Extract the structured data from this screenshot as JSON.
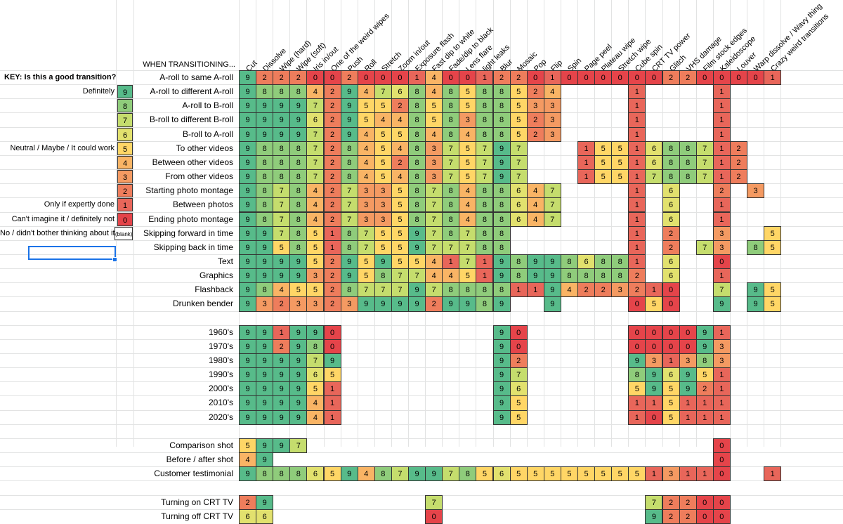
{
  "key": {
    "title": "KEY: Is this a good transition?",
    "rows": [
      {
        "label": "Definitely",
        "value": "9"
      },
      {
        "label": "",
        "value": "8"
      },
      {
        "label": "",
        "value": "7"
      },
      {
        "label": "",
        "value": "6"
      },
      {
        "label": "Neutral / Maybe / It could work",
        "value": "5"
      },
      {
        "label": "",
        "value": "4"
      },
      {
        "label": "",
        "value": "3"
      },
      {
        "label": "",
        "value": "2"
      },
      {
        "label": "Only if expertly done",
        "value": "1"
      },
      {
        "label": "Can't imagine it / definitely not",
        "value": "0"
      },
      {
        "label": "No / didn't bother thinking about it",
        "value": "(blank)"
      }
    ]
  },
  "corner_label": "WHEN TRANSITIONING...",
  "columns": [
    "Cut",
    "Dissolve",
    "Wipe (hard)",
    "Wipe (soft)",
    "Iris in/out",
    "One of the weird wipes",
    "Push",
    "Roll",
    "Stretch",
    "Zoom in/out",
    "Exposure flash",
    "Fast dip to white",
    "Fade/dip to black",
    "Lens flare",
    "light leaks",
    "Blur",
    "Mosaic",
    "Pop",
    "Flip",
    "Spin",
    "Page peel",
    "Plateau wipe",
    "Stretch wipe",
    "Cube spin",
    "CRT TV power",
    "Glitch",
    "VHS damage",
    "Film stock edges",
    "Kaleidoscope",
    "Louver",
    "Warp dissolve / Wavy thing",
    "Crazy weird transitions"
  ],
  "rows": [
    {
      "label": "A-roll to same A-roll",
      "cells": [
        "9",
        "2",
        "2",
        "2",
        "0",
        "0",
        "2",
        "0",
        "0",
        "0",
        "1",
        "4",
        "0",
        "0",
        "1",
        "2",
        "2",
        "0",
        "1",
        "0",
        "0",
        "0",
        "0",
        "0",
        "0",
        "2",
        "2",
        "0",
        "0",
        "0",
        "0",
        "1"
      ]
    },
    {
      "label": "A-roll to different A-roll",
      "cells": [
        "9",
        "8",
        "8",
        "8",
        "4",
        "2",
        "9",
        "4",
        "7",
        "6",
        "8",
        "4",
        "8",
        "5",
        "8",
        "8",
        "5",
        "2",
        "4",
        "",
        "",
        "",
        "",
        "1",
        "",
        "",
        "",
        "",
        "1",
        "",
        "",
        ""
      ]
    },
    {
      "label": "A-roll to B-roll",
      "cells": [
        "9",
        "9",
        "9",
        "9",
        "7",
        "2",
        "9",
        "5",
        "5",
        "2",
        "8",
        "5",
        "8",
        "5",
        "8",
        "8",
        "5",
        "3",
        "3",
        "",
        "",
        "",
        "",
        "1",
        "",
        "",
        "",
        "",
        "1",
        "",
        "",
        ""
      ]
    },
    {
      "label": "B-roll to different B-roll",
      "cells": [
        "9",
        "9",
        "9",
        "9",
        "6",
        "2",
        "9",
        "5",
        "4",
        "4",
        "8",
        "5",
        "8",
        "3",
        "8",
        "8",
        "5",
        "2",
        "3",
        "",
        "",
        "",
        "",
        "1",
        "",
        "",
        "",
        "",
        "1",
        "",
        "",
        ""
      ]
    },
    {
      "label": "B-roll to A-roll",
      "cells": [
        "9",
        "9",
        "9",
        "9",
        "7",
        "2",
        "9",
        "4",
        "5",
        "5",
        "8",
        "4",
        "8",
        "4",
        "8",
        "8",
        "5",
        "2",
        "3",
        "",
        "",
        "",
        "",
        "1",
        "",
        "",
        "",
        "",
        "1",
        "",
        "",
        ""
      ]
    },
    {
      "label": "To other videos",
      "cells": [
        "9",
        "8",
        "8",
        "8",
        "7",
        "2",
        "8",
        "4",
        "5",
        "4",
        "8",
        "3",
        "7",
        "5",
        "7",
        "9",
        "7",
        "",
        "",
        "",
        "1",
        "5",
        "5",
        "1",
        "6",
        "8",
        "8",
        "7",
        "1",
        "2",
        "",
        ""
      ]
    },
    {
      "label": "Between other videos",
      "cells": [
        "9",
        "8",
        "8",
        "8",
        "7",
        "2",
        "8",
        "4",
        "5",
        "2",
        "8",
        "3",
        "7",
        "5",
        "7",
        "9",
        "7",
        "",
        "",
        "",
        "1",
        "5",
        "5",
        "1",
        "6",
        "8",
        "8",
        "7",
        "1",
        "2",
        "",
        ""
      ]
    },
    {
      "label": "From other videos",
      "cells": [
        "9",
        "8",
        "8",
        "8",
        "7",
        "2",
        "8",
        "4",
        "5",
        "4",
        "8",
        "3",
        "7",
        "5",
        "7",
        "9",
        "7",
        "",
        "",
        "",
        "1",
        "5",
        "5",
        "1",
        "7",
        "8",
        "8",
        "7",
        "1",
        "2",
        "",
        ""
      ]
    },
    {
      "label": "Starting photo montage",
      "cells": [
        "9",
        "8",
        "7",
        "8",
        "4",
        "2",
        "7",
        "3",
        "3",
        "5",
        "8",
        "7",
        "8",
        "4",
        "8",
        "8",
        "6",
        "4",
        "7",
        "",
        "",
        "",
        "",
        "1",
        "",
        "6",
        "",
        "",
        "2",
        "",
        "3",
        ""
      ]
    },
    {
      "label": "Between photos",
      "cells": [
        "9",
        "8",
        "7",
        "8",
        "4",
        "2",
        "7",
        "3",
        "3",
        "5",
        "8",
        "7",
        "8",
        "4",
        "8",
        "8",
        "6",
        "4",
        "7",
        "",
        "",
        "",
        "",
        "1",
        "",
        "6",
        "",
        "",
        "1",
        "",
        "",
        ""
      ]
    },
    {
      "label": "Ending photo montage",
      "cells": [
        "9",
        "8",
        "7",
        "8",
        "4",
        "2",
        "7",
        "3",
        "3",
        "5",
        "8",
        "7",
        "8",
        "4",
        "8",
        "8",
        "6",
        "4",
        "7",
        "",
        "",
        "",
        "",
        "1",
        "",
        "6",
        "",
        "",
        "1",
        "",
        "",
        ""
      ]
    },
    {
      "label": "Skipping forward in time",
      "cells": [
        "9",
        "9",
        "7",
        "8",
        "5",
        "1",
        "8",
        "7",
        "5",
        "5",
        "9",
        "7",
        "8",
        "7",
        "8",
        "8",
        "",
        "",
        "",
        "",
        "",
        "",
        "",
        "1",
        "",
        "2",
        "",
        "",
        "3",
        "",
        "",
        "5"
      ]
    },
    {
      "label": "Skipping back in time",
      "cells": [
        "9",
        "9",
        "5",
        "8",
        "5",
        "1",
        "8",
        "7",
        "5",
        "5",
        "9",
        "7",
        "7",
        "7",
        "8",
        "8",
        "",
        "",
        "",
        "",
        "",
        "",
        "",
        "1",
        "",
        "2",
        "",
        "7",
        "3",
        "",
        "8",
        "5"
      ]
    },
    {
      "label": "Text",
      "cells": [
        "9",
        "9",
        "9",
        "9",
        "5",
        "2",
        "9",
        "5",
        "9",
        "5",
        "5",
        "4",
        "1",
        "7",
        "1",
        "9",
        "8",
        "9",
        "9",
        "8",
        "6",
        "8",
        "8",
        "1",
        "",
        "6",
        "",
        "",
        "0",
        "",
        "",
        ""
      ]
    },
    {
      "label": "Graphics",
      "cells": [
        "9",
        "9",
        "9",
        "9",
        "3",
        "2",
        "9",
        "5",
        "8",
        "7",
        "7",
        "4",
        "4",
        "5",
        "1",
        "9",
        "8",
        "9",
        "9",
        "8",
        "8",
        "8",
        "8",
        "2",
        "",
        "6",
        "",
        "",
        "1",
        "",
        "",
        ""
      ]
    },
    {
      "label": "Flashback",
      "cells": [
        "9",
        "8",
        "4",
        "5",
        "5",
        "2",
        "8",
        "7",
        "7",
        "7",
        "9",
        "7",
        "8",
        "8",
        "8",
        "8",
        "1",
        "1",
        "9",
        "4",
        "2",
        "2",
        "3",
        "2",
        "1",
        "0",
        "",
        "",
        "7",
        "",
        "9",
        "5"
      ]
    },
    {
      "label": "Drunken bender",
      "cells": [
        "9",
        "3",
        "2",
        "3",
        "3",
        "2",
        "3",
        "9",
        "9",
        "9",
        "9",
        "2",
        "9",
        "9",
        "8",
        "9",
        "",
        "",
        "9",
        "",
        "",
        "",
        "",
        "0",
        "5",
        "0",
        "",
        "",
        "9",
        "",
        "9",
        "5"
      ]
    },
    {
      "label": "",
      "cells": []
    },
    {
      "label": "1960's",
      "cells": [
        "9",
        "9",
        "1",
        "9",
        "9",
        "0",
        "",
        "",
        "",
        "",
        "",
        "",
        "",
        "",
        "",
        "9",
        "0",
        "",
        "",
        "",
        "",
        "",
        "",
        "0",
        "0",
        "0",
        "0",
        "9",
        "1",
        "",
        "",
        ""
      ]
    },
    {
      "label": "1970's",
      "cells": [
        "9",
        "9",
        "2",
        "9",
        "8",
        "0",
        "",
        "",
        "",
        "",
        "",
        "",
        "",
        "",
        "",
        "9",
        "0",
        "",
        "",
        "",
        "",
        "",
        "",
        "0",
        "0",
        "0",
        "0",
        "9",
        "3",
        "",
        "",
        ""
      ]
    },
    {
      "label": "1980's",
      "cells": [
        "9",
        "9",
        "9",
        "9",
        "7",
        "9",
        "",
        "",
        "",
        "",
        "",
        "",
        "",
        "",
        "",
        "9",
        "2",
        "",
        "",
        "",
        "",
        "",
        "",
        "9",
        "3",
        "1",
        "3",
        "8",
        "3",
        "",
        "",
        ""
      ]
    },
    {
      "label": "1990's",
      "cells": [
        "9",
        "9",
        "9",
        "9",
        "6",
        "5",
        "",
        "",
        "",
        "",
        "",
        "",
        "",
        "",
        "",
        "9",
        "7",
        "",
        "",
        "",
        "",
        "",
        "",
        "8",
        "9",
        "6",
        "9",
        "5",
        "1",
        "",
        "",
        ""
      ]
    },
    {
      "label": "2000's",
      "cells": [
        "9",
        "9",
        "9",
        "9",
        "5",
        "1",
        "",
        "",
        "",
        "",
        "",
        "",
        "",
        "",
        "",
        "9",
        "6",
        "",
        "",
        "",
        "",
        "",
        "",
        "5",
        "9",
        "5",
        "9",
        "2",
        "1",
        "",
        "",
        ""
      ]
    },
    {
      "label": "2010's",
      "cells": [
        "9",
        "9",
        "9",
        "9",
        "4",
        "1",
        "",
        "",
        "",
        "",
        "",
        "",
        "",
        "",
        "",
        "9",
        "5",
        "",
        "",
        "",
        "",
        "",
        "",
        "1",
        "1",
        "5",
        "1",
        "1",
        "1",
        "",
        "",
        ""
      ]
    },
    {
      "label": "2020's",
      "cells": [
        "9",
        "9",
        "9",
        "9",
        "4",
        "1",
        "",
        "",
        "",
        "",
        "",
        "",
        "",
        "",
        "",
        "9",
        "5",
        "",
        "",
        "",
        "",
        "",
        "",
        "1",
        "0",
        "5",
        "1",
        "1",
        "1",
        "",
        "",
        ""
      ]
    },
    {
      "label": "",
      "cells": []
    },
    {
      "label": "Comparison shot",
      "cells": [
        "5",
        "9",
        "9",
        "7",
        "",
        "",
        "",
        "",
        "",
        "",
        "",
        "",
        "",
        "",
        "",
        "",
        "",
        "",
        "",
        "",
        "",
        "",
        "",
        "",
        "",
        "",
        "",
        "",
        "0",
        "",
        "",
        ""
      ]
    },
    {
      "label": "Before / after shot",
      "cells": [
        "4",
        "9",
        "",
        "",
        "",
        "",
        "",
        "",
        "",
        "",
        "",
        "",
        "",
        "",
        "",
        "",
        "",
        "",
        "",
        "",
        "",
        "",
        "",
        "",
        "",
        "",
        "",
        "",
        "0",
        "",
        "",
        ""
      ]
    },
    {
      "label": "Customer testimonial",
      "cells": [
        "9",
        "8",
        "8",
        "8",
        "6",
        "5",
        "9",
        "4",
        "8",
        "7",
        "9",
        "9",
        "7",
        "8",
        "5",
        "6",
        "5",
        "5",
        "5",
        "5",
        "5",
        "5",
        "5",
        "5",
        "1",
        "3",
        "1",
        "1",
        "0",
        "",
        "",
        "1"
      ]
    },
    {
      "label": "",
      "cells": []
    },
    {
      "label": "Turning on CRT TV",
      "cells": [
        "2",
        "9",
        "",
        "",
        "",
        "",
        "",
        "",
        "",
        "",
        "",
        "7",
        "",
        "",
        "",
        "",
        "",
        "",
        "",
        "",
        "",
        "",
        "",
        "",
        "7",
        "2",
        "2",
        "0",
        "0",
        "",
        "",
        ""
      ]
    },
    {
      "label": "Turning off CRT TV",
      "cells": [
        "6",
        "6",
        "",
        "",
        "",
        "",
        "",
        "",
        "",
        "",
        "",
        "0",
        "",
        "",
        "",
        "",
        "",
        "",
        "",
        "",
        "",
        "",
        "",
        "",
        "9",
        "2",
        "2",
        "0",
        "0",
        "",
        "",
        ""
      ]
    }
  ],
  "colors": {
    "9": "#57bb8a",
    "8": "#8fcc7b",
    "7": "#c5dd6d",
    "6": "#e2e16e",
    "5": "#ffd666",
    "4": "#f9b465",
    "3": "#f49a62",
    "2": "#ee7d5c",
    "1": "#e8665a",
    "0": "#e5444a",
    "(blank)": "#ffffff"
  }
}
